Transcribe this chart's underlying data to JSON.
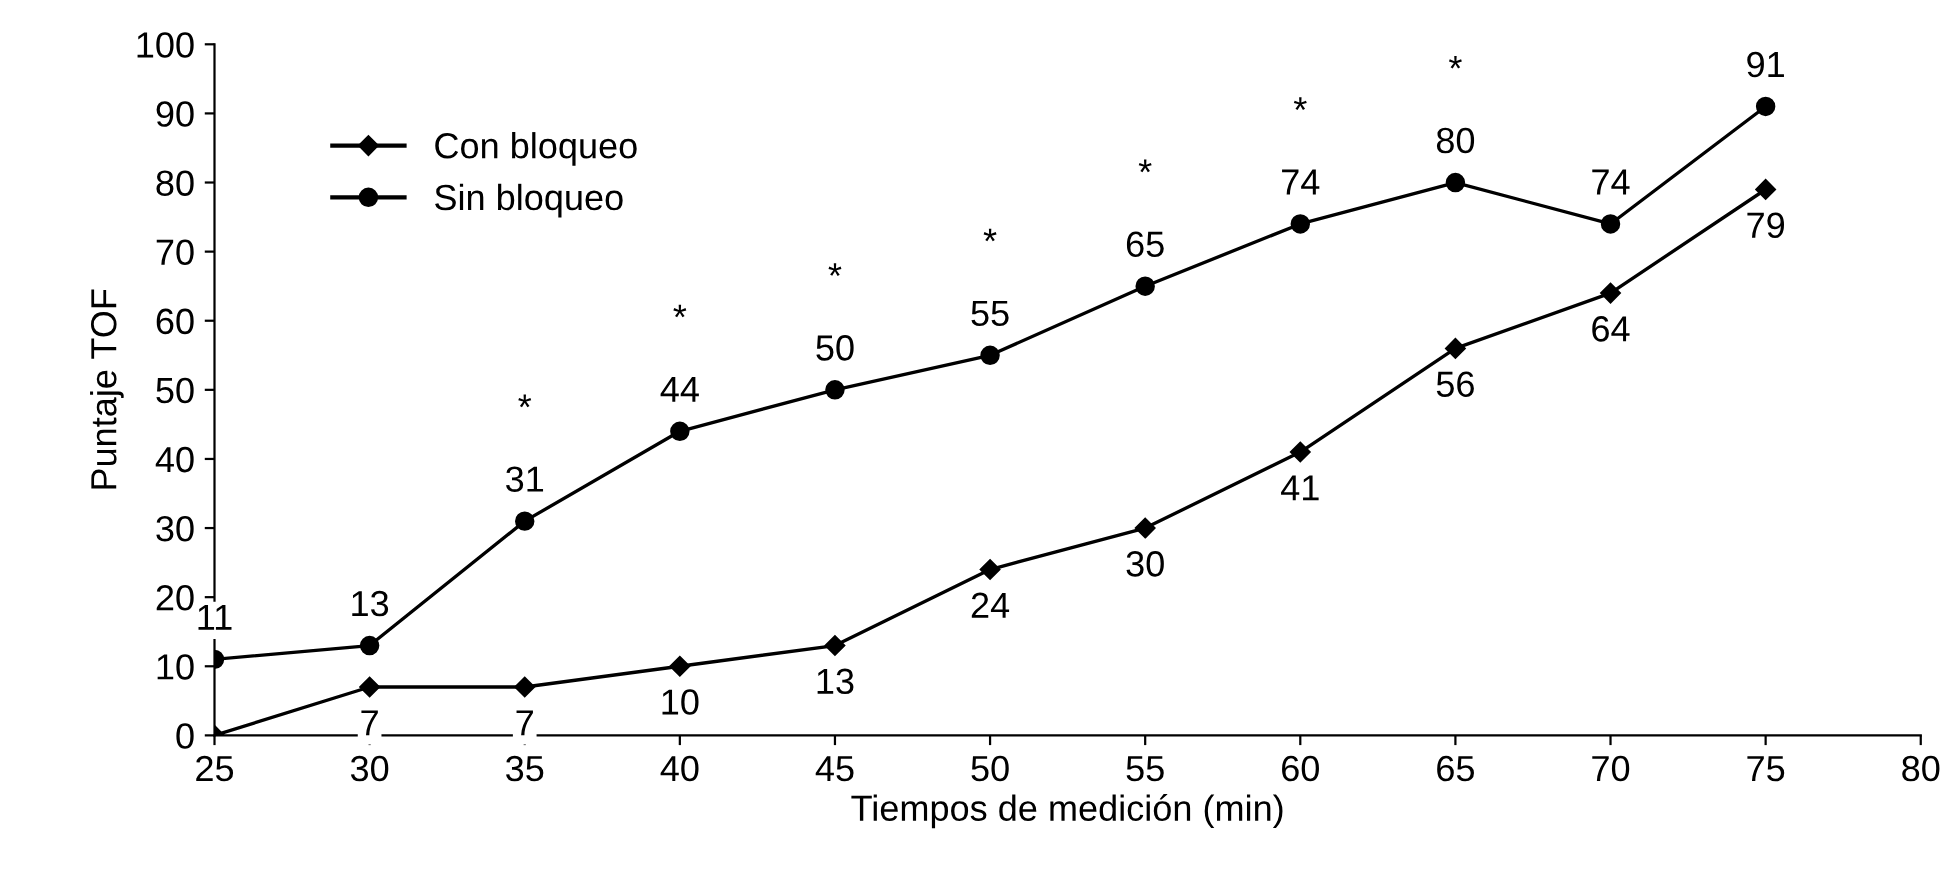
{
  "chart_data": {
    "type": "line",
    "xlabel": "Tiempos de medición (min)",
    "ylabel": "Puntaje TOF",
    "x": [
      25,
      30,
      35,
      40,
      45,
      50,
      55,
      60,
      65,
      70,
      75
    ],
    "series": [
      {
        "name": "Con bloqueo",
        "color": "#000000",
        "marker": "diamond",
        "values": [
          0,
          7,
          7,
          10,
          13,
          24,
          30,
          41,
          56,
          64,
          79
        ],
        "value_labels": [
          null,
          "7",
          "7",
          "10",
          "13",
          "24",
          "30",
          "41",
          "56",
          "64",
          "79"
        ]
      },
      {
        "name": "Sin bloqueo",
        "color": "#000000",
        "marker": "circle",
        "values": [
          11,
          13,
          31,
          44,
          50,
          55,
          65,
          74,
          80,
          74,
          91
        ],
        "value_labels": [
          "11",
          "13",
          "31",
          "44",
          "50",
          "55",
          "65",
          "74",
          "80",
          "74",
          "91"
        ]
      }
    ],
    "annotations": [
      "*",
      "*",
      "*",
      "*",
      "*",
      "*",
      "*"
    ],
    "xlim": [
      25,
      80
    ],
    "xticks": [
      25,
      30,
      35,
      40,
      45,
      50,
      55,
      60,
      65,
      70,
      75,
      80
    ],
    "ylim": [
      0,
      100
    ],
    "yticks": [
      0,
      10,
      20,
      30,
      40,
      50,
      60,
      70,
      80,
      90,
      100
    ],
    "grid": false,
    "legend": "top left",
    "line_style": "solid"
  }
}
